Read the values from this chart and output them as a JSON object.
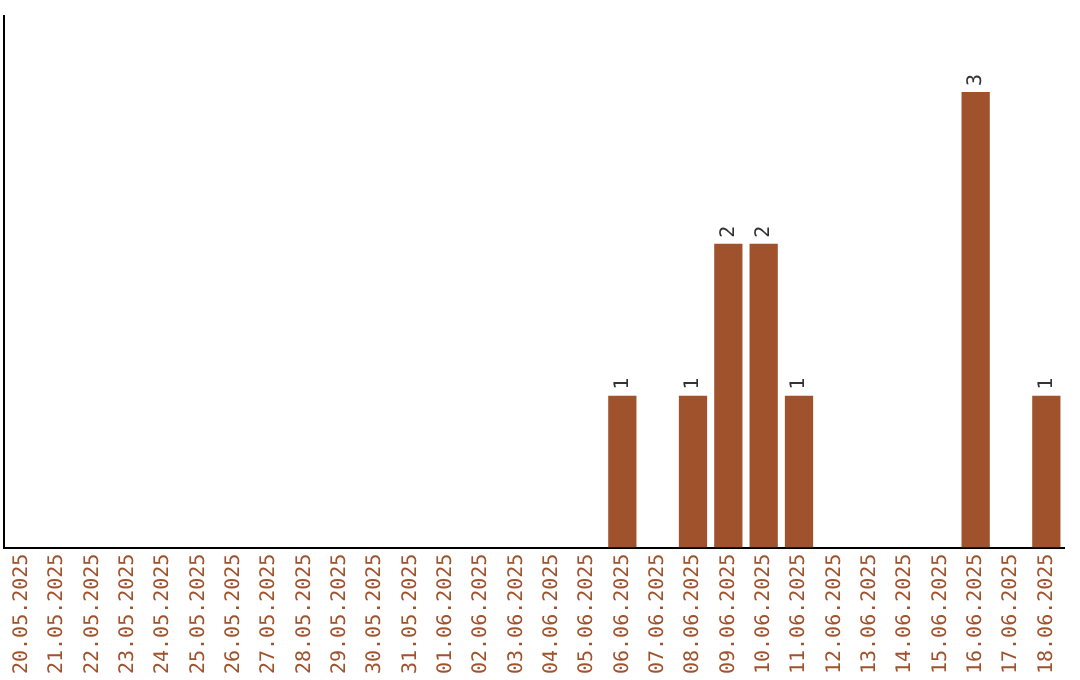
{
  "chart_data": {
    "type": "bar",
    "categories": [
      "20.05.2025",
      "21.05.2025",
      "22.05.2025",
      "23.05.2025",
      "24.05.2025",
      "25.05.2025",
      "26.05.2025",
      "27.05.2025",
      "28.05.2025",
      "29.05.2025",
      "30.05.2025",
      "31.05.2025",
      "01.06.2025",
      "02.06.2025",
      "03.06.2025",
      "04.06.2025",
      "05.06.2025",
      "06.06.2025",
      "07.06.2025",
      "08.06.2025",
      "09.06.2025",
      "10.06.2025",
      "11.06.2025",
      "12.06.2025",
      "13.06.2025",
      "14.06.2025",
      "15.06.2025",
      "16.06.2025",
      "17.06.2025",
      "18.06.2025"
    ],
    "values": [
      null,
      null,
      null,
      null,
      null,
      null,
      null,
      null,
      null,
      null,
      null,
      null,
      null,
      null,
      null,
      null,
      null,
      1,
      null,
      1,
      2,
      2,
      1,
      null,
      null,
      null,
      null,
      3,
      null,
      1
    ],
    "data_labels": true,
    "tick_labels": "x",
    "color": "#a0522d",
    "grid": false,
    "legend": false
  }
}
